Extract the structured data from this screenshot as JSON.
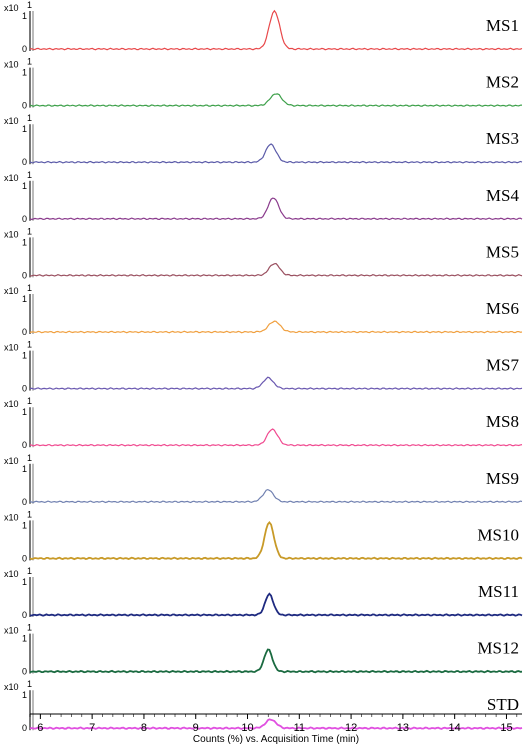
{
  "chart_data": {
    "type": "line",
    "xlabel": "Counts (%) vs. Acquisition Time (min)",
    "xlim": [
      5.8,
      15.3
    ],
    "x_ticks": [
      "6",
      "7",
      "8",
      "9",
      "10",
      "11",
      "12",
      "13",
      "14",
      "15"
    ],
    "y_scale_label": "x10",
    "y_exponent": "1",
    "y_tick_labels": [
      "1",
      "0"
    ],
    "grid": false,
    "series": [
      {
        "name": "MS1",
        "color": "#e8484a",
        "peak_time": 10.52,
        "peak_height": 0.95,
        "width": 0.1
      },
      {
        "name": "MS2",
        "color": "#3da04a",
        "peak_time": 10.55,
        "peak_height": 0.3,
        "width": 0.11
      },
      {
        "name": "MS3",
        "color": "#5a5aa8",
        "peak_time": 10.45,
        "peak_height": 0.45,
        "width": 0.1
      },
      {
        "name": "MS4",
        "color": "#8a3a8c",
        "peak_time": 10.5,
        "peak_height": 0.53,
        "width": 0.1
      },
      {
        "name": "MS5",
        "color": "#9a5060",
        "peak_time": 10.52,
        "peak_height": 0.3,
        "width": 0.1
      },
      {
        "name": "MS6",
        "color": "#f0a040",
        "peak_time": 10.52,
        "peak_height": 0.27,
        "width": 0.11
      },
      {
        "name": "MS7",
        "color": "#6a58b0",
        "peak_time": 10.4,
        "peak_height": 0.27,
        "width": 0.1
      },
      {
        "name": "MS8",
        "color": "#f04a90",
        "peak_time": 10.48,
        "peak_height": 0.4,
        "width": 0.1
      },
      {
        "name": "MS9",
        "color": "#7080b0",
        "peak_time": 10.4,
        "peak_height": 0.3,
        "width": 0.1
      },
      {
        "name": "MS10",
        "color": "#c89a28",
        "peak_time": 10.42,
        "peak_height": 0.9,
        "width": 0.09
      },
      {
        "name": "MS11",
        "color": "#1e2a80",
        "peak_time": 10.42,
        "peak_height": 0.52,
        "width": 0.08
      },
      {
        "name": "MS12",
        "color": "#1a6a40",
        "peak_time": 10.4,
        "peak_height": 0.55,
        "width": 0.08
      },
      {
        "name": "STD",
        "color": "#e050e0",
        "peak_time": 10.45,
        "peak_height": 0.22,
        "width": 0.1
      }
    ]
  }
}
